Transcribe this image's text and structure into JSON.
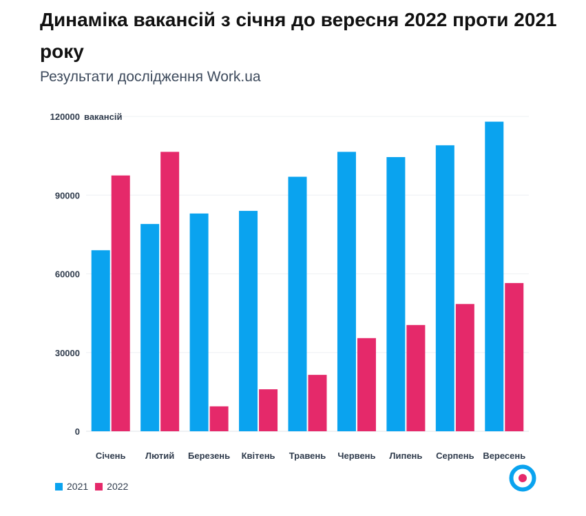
{
  "title": "Динаміка вакансій з січня до вересня 2022 проти 2021 року",
  "subtitle": "Результати дослідження Work.ua",
  "colors": {
    "s2021": "#0aa3ef",
    "s2022": "#e5296a",
    "grid": "#eef0f3",
    "logo_ring": "#0aa3ef",
    "logo_dot": "#e5296a"
  },
  "logo_icon": "work-ua-logo-icon",
  "chart_data": {
    "type": "bar",
    "title": "Динаміка вакансій з січня до вересня 2022 проти 2021 року",
    "subtitle": "Результати дослідження Work.ua",
    "xlabel": "",
    "ylabel": "вакансій",
    "ylim": [
      0,
      120000
    ],
    "yticks": [
      "0",
      "30000",
      "60000",
      "90000",
      "120000"
    ],
    "grid": true,
    "legend_position": "bottom-left",
    "categories": [
      "Січень",
      "Лютий",
      "Березень",
      "Квітень",
      "Травень",
      "Червень",
      "Липень",
      "Серпень",
      "Вересень"
    ],
    "series": [
      {
        "name": "2021",
        "values": [
          69000,
          79000,
          83000,
          84000,
          97000,
          106500,
          104500,
          109000,
          118000
        ]
      },
      {
        "name": "2022",
        "values": [
          97500,
          106500,
          9500,
          16000,
          21500,
          35500,
          40500,
          48500,
          56500
        ]
      }
    ]
  }
}
